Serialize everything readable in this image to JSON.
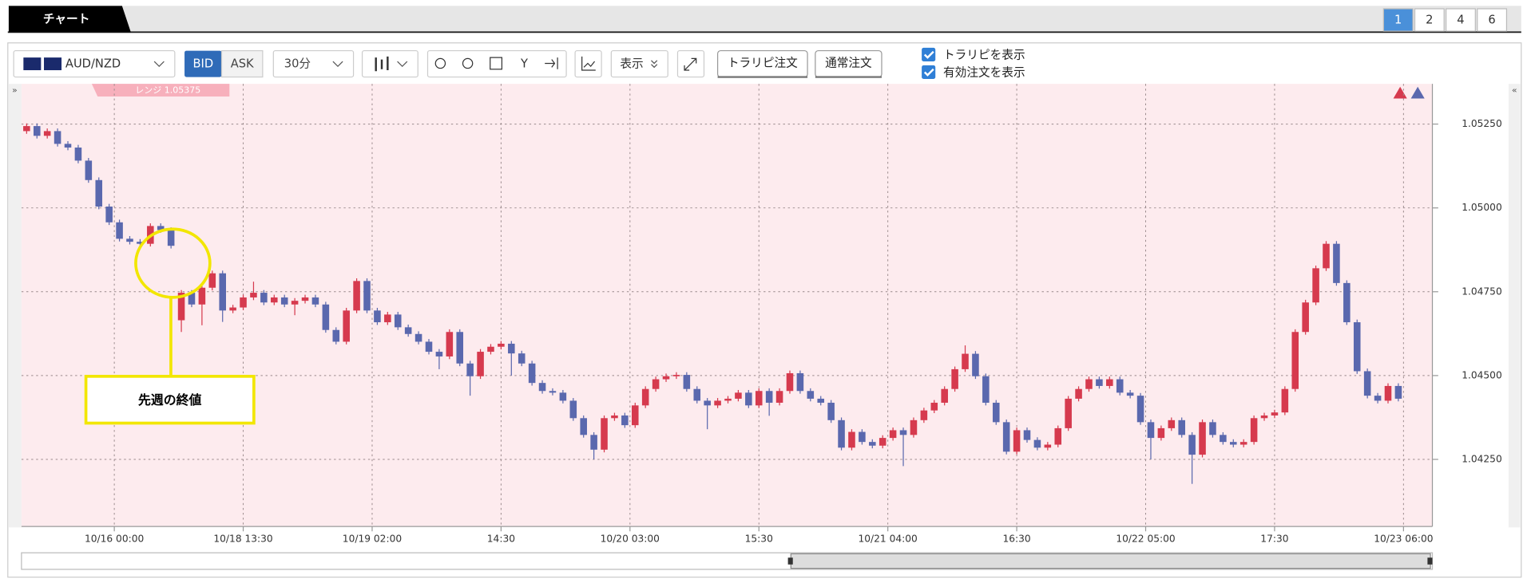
{
  "ui": {
    "tab": "チャート",
    "pages": [
      "1",
      "2",
      "4",
      "6"
    ],
    "symbol": "AUD/NZD",
    "bid": "BID",
    "ask": "ASK",
    "timeframe": "30分",
    "display": "表示",
    "order_trap": "トラリピ注文",
    "order_normal": "通常注文",
    "check_trap": "トラリピを表示",
    "check_orders": "有効注文を表示"
  },
  "chart_data": {
    "type": "candlestick",
    "range_label": "レンジ 1.05375",
    "annotation": "先週の終値",
    "up_color": "#d63a4e",
    "down_color": "#5a68ae",
    "grid": true,
    "xlim": [
      0,
      136.8
    ],
    "xticks": [
      {
        "value": 9,
        "label": "10/16 00:00"
      },
      {
        "value": 21.5,
        "label": "10/18 13:30"
      },
      {
        "value": 34,
        "label": "10/19 02:00"
      },
      {
        "value": 46.5,
        "label": "14:30"
      },
      {
        "value": 59,
        "label": "10/20 03:00"
      },
      {
        "value": 71.5,
        "label": "15:30"
      },
      {
        "value": 84,
        "label": "10/21 04:00"
      },
      {
        "value": 96.5,
        "label": "16:30"
      },
      {
        "value": 109,
        "label": "10/22 05:00"
      },
      {
        "value": 121.5,
        "label": "17:30"
      },
      {
        "value": 134,
        "label": "10/23 06:00"
      }
    ],
    "ylim": [
      1.0405,
      1.0537
    ],
    "yticks": [
      {
        "value": 1.0425,
        "label": "1.04250"
      },
      {
        "value": 1.045,
        "label": "1.04500"
      },
      {
        "value": 1.0475,
        "label": "1.04750"
      },
      {
        "value": 1.05,
        "label": "1.05000"
      },
      {
        "value": 1.0525,
        "label": "1.05250"
      }
    ],
    "open": [
      1.05229,
      1.05244,
      1.05215,
      1.05229,
      1.05191,
      1.0518,
      1.05141,
      1.05083,
      1.05004,
      1.04957,
      1.04908,
      1.04899,
      1.04893,
      1.04946,
      1.04934,
      1.04665,
      1.04747,
      1.04712,
      1.04762,
      1.04805,
      1.04694,
      1.04703,
      1.04733,
      1.04747,
      1.04718,
      1.04733,
      1.04712,
      1.04723,
      1.04733,
      1.04712,
      1.04636,
      1.04601,
      1.04694,
      1.04782,
      1.04694,
      1.04659,
      1.04682,
      1.04644,
      1.04624,
      1.04601,
      1.04571,
      1.04557,
      1.0463,
      1.04536,
      1.04498,
      1.04571,
      1.04586,
      1.04595,
      1.04566,
      1.04536,
      1.04478,
      1.04454,
      1.04449,
      1.04425,
      1.04373,
      1.04323,
      1.04279,
      1.04373,
      1.04381,
      1.04352,
      1.04411,
      1.0446,
      1.04489,
      1.04498,
      1.04502,
      1.0446,
      1.04425,
      1.04411,
      1.04425,
      1.04431,
      1.04449,
      1.04411,
      1.04454,
      1.04419,
      1.04454,
      1.04507,
      1.04454,
      1.04431,
      1.04419,
      1.04367,
      1.04285,
      1.04332,
      1.04302,
      1.04291,
      1.04314,
      1.04337,
      1.04323,
      1.04367,
      1.04396,
      1.04419,
      1.0446,
      1.04519,
      1.04565,
      1.04498,
      1.04419,
      1.04361,
      1.04273,
      1.04337,
      1.04308,
      1.04285,
      1.04294,
      1.04343,
      1.04431,
      1.0446,
      1.04489,
      1.04469,
      1.04489,
      1.04449,
      1.0444,
      1.04361,
      1.04314,
      1.04343,
      1.04367,
      1.04323,
      1.04264,
      1.04361,
      1.04323,
      1.04302,
      1.04294,
      1.04302,
      1.04373,
      1.04381,
      1.0439,
      1.0446,
      1.0463,
      1.04718,
      1.0482,
      1.04893,
      1.04776,
      1.04659,
      1.04513,
      1.0444,
      1.04425,
      1.04469
    ],
    "high": [
      1.05252,
      1.05252,
      1.05237,
      1.05237,
      1.05199,
      1.05188,
      1.05149,
      1.05091,
      1.05012,
      1.04965,
      1.04916,
      1.04907,
      1.04954,
      1.04954,
      1.04942,
      1.04755,
      1.04755,
      1.0477,
      1.04813,
      1.04813,
      1.04711,
      1.04741,
      1.0478,
      1.04755,
      1.04741,
      1.04741,
      1.04731,
      1.04741,
      1.04741,
      1.0472,
      1.04644,
      1.04702,
      1.0479,
      1.0479,
      1.04702,
      1.0469,
      1.0469,
      1.04652,
      1.04632,
      1.04609,
      1.04579,
      1.04638,
      1.04638,
      1.04544,
      1.04579,
      1.04594,
      1.04603,
      1.04603,
      1.04574,
      1.04544,
      1.04486,
      1.04462,
      1.04457,
      1.04433,
      1.04381,
      1.04331,
      1.04381,
      1.04389,
      1.04389,
      1.04419,
      1.04468,
      1.04497,
      1.04506,
      1.0451,
      1.0451,
      1.04468,
      1.04433,
      1.04433,
      1.04439,
      1.04457,
      1.04457,
      1.04462,
      1.04462,
      1.04462,
      1.04515,
      1.04515,
      1.04462,
      1.04439,
      1.04427,
      1.04375,
      1.0434,
      1.0434,
      1.0431,
      1.04322,
      1.04345,
      1.04345,
      1.04375,
      1.04404,
      1.04427,
      1.04468,
      1.04527,
      1.0459,
      1.04573,
      1.04506,
      1.04427,
      1.04369,
      1.04345,
      1.04345,
      1.04316,
      1.04302,
      1.04351,
      1.04439,
      1.04468,
      1.04497,
      1.04497,
      1.04497,
      1.04497,
      1.04457,
      1.04448,
      1.04369,
      1.04351,
      1.04375,
      1.04375,
      1.04331,
      1.04369,
      1.04369,
      1.04331,
      1.0431,
      1.0431,
      1.04381,
      1.04389,
      1.04398,
      1.04468,
      1.04638,
      1.04726,
      1.04828,
      1.04901,
      1.04901,
      1.04784,
      1.04667,
      1.04521,
      1.04448,
      1.04477,
      1.04477
    ],
    "low": [
      1.05221,
      1.05207,
      1.05207,
      1.05183,
      1.05172,
      1.05133,
      1.05075,
      1.04996,
      1.04949,
      1.049,
      1.04891,
      1.04885,
      1.04885,
      1.04926,
      1.04879,
      1.0463,
      1.04704,
      1.0465,
      1.04754,
      1.0466,
      1.04686,
      1.04695,
      1.04725,
      1.0471,
      1.0471,
      1.04704,
      1.0468,
      1.04715,
      1.04704,
      1.04628,
      1.04593,
      1.04593,
      1.04686,
      1.04686,
      1.04651,
      1.04651,
      1.04636,
      1.04616,
      1.04593,
      1.04563,
      1.04519,
      1.04549,
      1.04528,
      1.0444,
      1.0449,
      1.04563,
      1.04578,
      1.045,
      1.04528,
      1.0447,
      1.04446,
      1.04441,
      1.04417,
      1.04365,
      1.04315,
      1.0425,
      1.04271,
      1.04365,
      1.04344,
      1.04344,
      1.04403,
      1.04452,
      1.04481,
      1.0449,
      1.04452,
      1.04417,
      1.0434,
      1.04403,
      1.04417,
      1.04423,
      1.04403,
      1.04403,
      1.0438,
      1.04411,
      1.04446,
      1.04446,
      1.04423,
      1.04411,
      1.04359,
      1.04277,
      1.04277,
      1.04294,
      1.04283,
      1.04283,
      1.04306,
      1.0423,
      1.04315,
      1.04359,
      1.04388,
      1.04411,
      1.04452,
      1.04511,
      1.0449,
      1.04411,
      1.04353,
      1.04265,
      1.04265,
      1.043,
      1.04277,
      1.04277,
      1.04286,
      1.04335,
      1.04423,
      1.04452,
      1.04461,
      1.04461,
      1.04441,
      1.04432,
      1.04353,
      1.0425,
      1.04306,
      1.04335,
      1.04315,
      1.04177,
      1.04256,
      1.04315,
      1.04294,
      1.04286,
      1.04286,
      1.04294,
      1.04365,
      1.04373,
      1.04382,
      1.04452,
      1.04622,
      1.0471,
      1.04812,
      1.04768,
      1.04651,
      1.04505,
      1.04432,
      1.04417,
      1.04417,
      1.04423
    ],
    "close": [
      1.05244,
      1.05215,
      1.05229,
      1.05191,
      1.0518,
      1.05141,
      1.05083,
      1.05004,
      1.04957,
      1.04908,
      1.04899,
      1.04893,
      1.04946,
      1.04934,
      1.04887,
      1.04747,
      1.04712,
      1.04762,
      1.04805,
      1.04694,
      1.04703,
      1.04733,
      1.04747,
      1.04718,
      1.04733,
      1.04712,
      1.04723,
      1.04733,
      1.04712,
      1.04636,
      1.04601,
      1.04694,
      1.04782,
      1.04694,
      1.04659,
      1.04682,
      1.04644,
      1.04624,
      1.04601,
      1.04571,
      1.04557,
      1.0463,
      1.04536,
      1.04498,
      1.04571,
      1.04586,
      1.04595,
      1.04566,
      1.04536,
      1.04478,
      1.04454,
      1.04449,
      1.04425,
      1.04373,
      1.04323,
      1.04279,
      1.04373,
      1.04381,
      1.04352,
      1.04411,
      1.0446,
      1.04489,
      1.04498,
      1.04502,
      1.0446,
      1.04425,
      1.04411,
      1.04425,
      1.04431,
      1.04449,
      1.04411,
      1.04454,
      1.04419,
      1.04454,
      1.04507,
      1.04454,
      1.04431,
      1.04419,
      1.04367,
      1.04285,
      1.04332,
      1.04302,
      1.04291,
      1.04314,
      1.04337,
      1.04323,
      1.04367,
      1.04396,
      1.04419,
      1.0446,
      1.04519,
      1.04565,
      1.04498,
      1.04419,
      1.04361,
      1.04273,
      1.04337,
      1.04308,
      1.04285,
      1.04294,
      1.04343,
      1.04431,
      1.0446,
      1.04489,
      1.04469,
      1.04489,
      1.04449,
      1.0444,
      1.04361,
      1.04314,
      1.04343,
      1.04367,
      1.04323,
      1.04264,
      1.04361,
      1.04323,
      1.04302,
      1.04294,
      1.04302,
      1.04373,
      1.04381,
      1.0439,
      1.0446,
      1.0463,
      1.04718,
      1.0482,
      1.04893,
      1.04776,
      1.04659,
      1.04513,
      1.0444,
      1.04425,
      1.04469,
      1.04431
    ]
  }
}
